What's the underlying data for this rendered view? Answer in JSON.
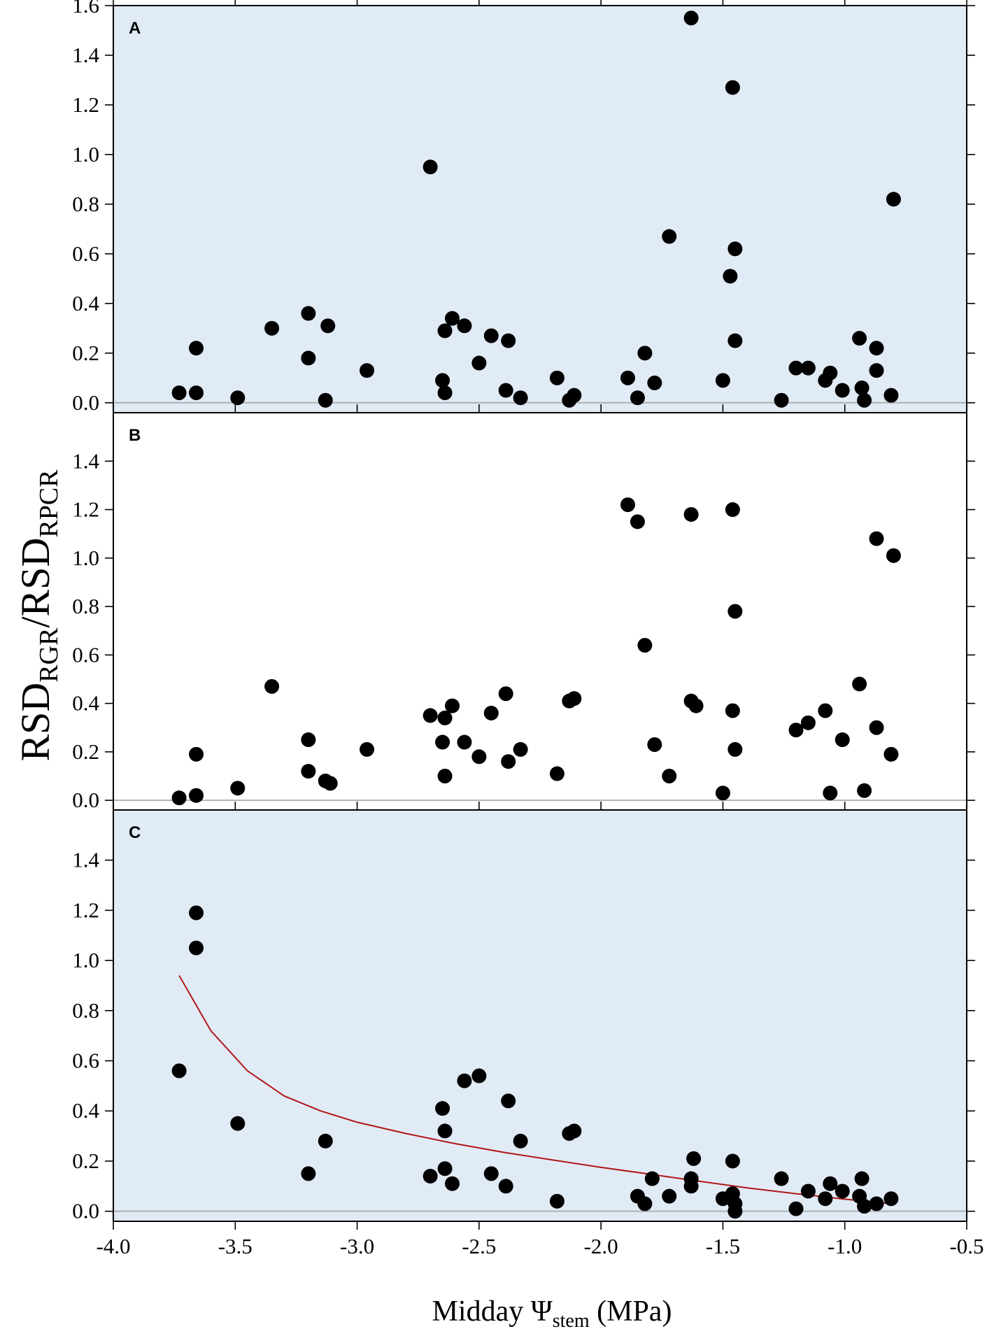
{
  "chart_data": {
    "type": "scatter",
    "x_axis": {
      "label_main": "Midday Ψ",
      "label_sub": "stem",
      "label_tail": " (MPa)",
      "xlim": [
        -4.0,
        -0.5
      ],
      "ticks": [
        -4.0,
        -3.5,
        -3.0,
        -2.5,
        -2.0,
        -1.5,
        -1.0,
        -0.5
      ],
      "tick_labels": [
        "-4.0",
        "-3.5",
        "-3.0",
        "-2.5",
        "-2.0",
        "-1.5",
        "-1.0",
        "-0.5"
      ]
    },
    "y_axis": {
      "label_parts": [
        {
          "text": "RSD",
          "sub": false
        },
        {
          "text": "RGR",
          "sub": true
        },
        {
          "text": "/RSD",
          "sub": false
        },
        {
          "text": "RPCR",
          "sub": true
        }
      ]
    },
    "panels": [
      {
        "label": "A",
        "background": "#e1ebf6",
        "ylim": [
          -0.04,
          1.6
        ],
        "ticks": [
          0.0,
          0.2,
          0.4,
          0.6,
          0.8,
          1.0,
          1.2,
          1.4,
          1.6
        ],
        "tick_labels": [
          "0.0",
          "0.2",
          "0.4",
          "0.6",
          "0.8",
          "1.0",
          "1.2",
          "1.4",
          "1.6"
        ],
        "points": [
          [
            -3.73,
            0.04
          ],
          [
            -3.66,
            0.04
          ],
          [
            -3.66,
            0.22
          ],
          [
            -3.49,
            0.02
          ],
          [
            -3.35,
            0.3
          ],
          [
            -3.2,
            0.36
          ],
          [
            -3.2,
            0.18
          ],
          [
            -3.12,
            0.31
          ],
          [
            -3.13,
            0.01
          ],
          [
            -2.96,
            0.13
          ],
          [
            -2.7,
            0.95
          ],
          [
            -2.65,
            0.09
          ],
          [
            -2.64,
            0.04
          ],
          [
            -2.64,
            0.29
          ],
          [
            -2.61,
            0.34
          ],
          [
            -2.56,
            0.31
          ],
          [
            -2.5,
            0.16
          ],
          [
            -2.45,
            0.27
          ],
          [
            -2.39,
            0.05
          ],
          [
            -2.38,
            0.25
          ],
          [
            -2.33,
            0.02
          ],
          [
            -2.18,
            0.1
          ],
          [
            -2.13,
            0.01
          ],
          [
            -2.11,
            0.03
          ],
          [
            -1.89,
            0.1
          ],
          [
            -1.85,
            0.02
          ],
          [
            -1.82,
            0.2
          ],
          [
            -1.78,
            0.08
          ],
          [
            -1.72,
            0.67
          ],
          [
            -1.63,
            1.55
          ],
          [
            -1.5,
            0.09
          ],
          [
            -1.47,
            0.51
          ],
          [
            -1.46,
            1.27
          ],
          [
            -1.45,
            0.62
          ],
          [
            -1.45,
            0.25
          ],
          [
            -1.26,
            0.01
          ],
          [
            -1.2,
            0.14
          ],
          [
            -1.15,
            0.14
          ],
          [
            -1.08,
            0.09
          ],
          [
            -1.06,
            0.12
          ],
          [
            -1.01,
            0.05
          ],
          [
            -0.94,
            0.26
          ],
          [
            -0.93,
            0.06
          ],
          [
            -0.92,
            0.01
          ],
          [
            -0.87,
            0.22
          ],
          [
            -0.87,
            0.13
          ],
          [
            -0.81,
            0.03
          ],
          [
            -0.8,
            0.82
          ]
        ]
      },
      {
        "label": "B",
        "background": "#ffffff",
        "ylim": [
          -0.04,
          1.6
        ],
        "ticks": [
          0.0,
          0.2,
          0.4,
          0.6,
          0.8,
          1.0,
          1.2,
          1.4
        ],
        "tick_labels": [
          "0.0",
          "0.2",
          "0.4",
          "0.6",
          "0.8",
          "1.0",
          "1.2",
          "1.4"
        ],
        "points": [
          [
            -3.73,
            0.01
          ],
          [
            -3.66,
            0.02
          ],
          [
            -3.66,
            0.19
          ],
          [
            -3.49,
            0.05
          ],
          [
            -3.35,
            0.47
          ],
          [
            -3.2,
            0.25
          ],
          [
            -3.2,
            0.12
          ],
          [
            -3.13,
            0.08
          ],
          [
            -3.11,
            0.07
          ],
          [
            -2.96,
            0.21
          ],
          [
            -2.7,
            0.35
          ],
          [
            -2.65,
            0.24
          ],
          [
            -2.64,
            0.1
          ],
          [
            -2.64,
            0.34
          ],
          [
            -2.61,
            0.39
          ],
          [
            -2.56,
            0.24
          ],
          [
            -2.5,
            0.18
          ],
          [
            -2.45,
            0.36
          ],
          [
            -2.39,
            0.44
          ],
          [
            -2.38,
            0.16
          ],
          [
            -2.33,
            0.21
          ],
          [
            -2.18,
            0.11
          ],
          [
            -2.13,
            0.41
          ],
          [
            -2.11,
            0.42
          ],
          [
            -1.89,
            1.22
          ],
          [
            -1.85,
            1.15
          ],
          [
            -1.82,
            0.64
          ],
          [
            -1.78,
            0.23
          ],
          [
            -1.72,
            0.1
          ],
          [
            -1.63,
            1.18
          ],
          [
            -1.63,
            0.41
          ],
          [
            -1.61,
            0.39
          ],
          [
            -1.5,
            0.03
          ],
          [
            -1.46,
            1.2
          ],
          [
            -1.46,
            0.37
          ],
          [
            -1.45,
            0.78
          ],
          [
            -1.45,
            0.21
          ],
          [
            -1.2,
            0.29
          ],
          [
            -1.15,
            0.32
          ],
          [
            -1.08,
            0.37
          ],
          [
            -1.06,
            0.03
          ],
          [
            -1.01,
            0.25
          ],
          [
            -0.94,
            0.48
          ],
          [
            -0.92,
            0.04
          ],
          [
            -0.87,
            1.08
          ],
          [
            -0.87,
            0.3
          ],
          [
            -0.81,
            0.19
          ],
          [
            -0.8,
            1.01
          ]
        ]
      },
      {
        "label": "C",
        "background": "#e1ebf6",
        "ylim": [
          -0.04,
          1.6
        ],
        "ticks": [
          0.0,
          0.2,
          0.4,
          0.6,
          0.8,
          1.0,
          1.2,
          1.4
        ],
        "tick_labels": [
          "0.0",
          "0.2",
          "0.4",
          "0.6",
          "0.8",
          "1.0",
          "1.2",
          "1.4"
        ],
        "points": [
          [
            -3.73,
            0.56
          ],
          [
            -3.66,
            1.19
          ],
          [
            -3.66,
            1.05
          ],
          [
            -3.49,
            0.35
          ],
          [
            -3.2,
            0.15
          ],
          [
            -3.13,
            0.28
          ],
          [
            -2.7,
            0.14
          ],
          [
            -2.65,
            0.41
          ],
          [
            -2.64,
            0.32
          ],
          [
            -2.64,
            0.17
          ],
          [
            -2.61,
            0.11
          ],
          [
            -2.56,
            0.52
          ],
          [
            -2.5,
            0.54
          ],
          [
            -2.45,
            0.15
          ],
          [
            -2.39,
            0.1
          ],
          [
            -2.38,
            0.44
          ],
          [
            -2.33,
            0.28
          ],
          [
            -2.18,
            0.04
          ],
          [
            -2.13,
            0.31
          ],
          [
            -2.11,
            0.32
          ],
          [
            -1.85,
            0.06
          ],
          [
            -1.82,
            0.03
          ],
          [
            -1.79,
            0.13
          ],
          [
            -1.72,
            0.06
          ],
          [
            -1.63,
            0.13
          ],
          [
            -1.63,
            0.1
          ],
          [
            -1.62,
            0.21
          ],
          [
            -1.5,
            0.05
          ],
          [
            -1.46,
            0.07
          ],
          [
            -1.46,
            0.2
          ],
          [
            -1.45,
            0.0
          ],
          [
            -1.45,
            0.03
          ],
          [
            -1.26,
            0.13
          ],
          [
            -1.2,
            0.01
          ],
          [
            -1.15,
            0.08
          ],
          [
            -1.08,
            0.05
          ],
          [
            -1.06,
            0.11
          ],
          [
            -1.01,
            0.08
          ],
          [
            -0.94,
            0.06
          ],
          [
            -0.93,
            0.13
          ],
          [
            -0.92,
            0.02
          ],
          [
            -0.87,
            0.03
          ],
          [
            -0.81,
            0.05
          ]
        ],
        "fit_curve": [
          [
            -3.73,
            0.94
          ],
          [
            -3.6,
            0.72
          ],
          [
            -3.45,
            0.56
          ],
          [
            -3.3,
            0.46
          ],
          [
            -3.15,
            0.4
          ],
          [
            -3.0,
            0.355
          ],
          [
            -2.8,
            0.31
          ],
          [
            -2.6,
            0.27
          ],
          [
            -2.4,
            0.235
          ],
          [
            -2.2,
            0.205
          ],
          [
            -2.0,
            0.175
          ],
          [
            -1.8,
            0.148
          ],
          [
            -1.6,
            0.12
          ],
          [
            -1.4,
            0.093
          ],
          [
            -1.2,
            0.07
          ],
          [
            -1.0,
            0.048
          ],
          [
            -0.81,
            0.03
          ]
        ],
        "fit_color": "#b01818"
      }
    ]
  }
}
